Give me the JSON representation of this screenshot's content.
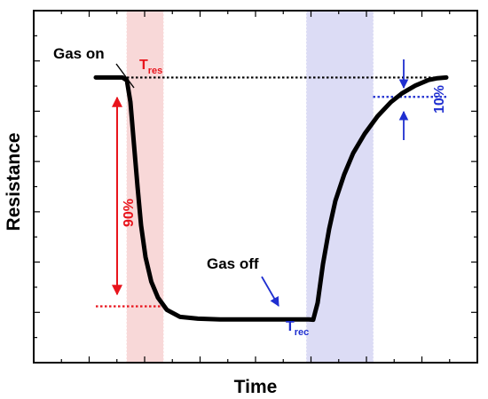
{
  "chart_data": {
    "type": "line",
    "xlabel": "Time",
    "ylabel": "Resistance",
    "xlim": [
      0,
      100
    ],
    "ylim": [
      0,
      100
    ],
    "grid": false,
    "series": [
      {
        "color": "#000000",
        "x": [
          14,
          17,
          20,
          21,
          21.8,
          22.6,
          23.4,
          24.2,
          25.2,
          26.5,
          28,
          30,
          33,
          37,
          42,
          50,
          56,
          60,
          62,
          63,
          64,
          65.2,
          66.6,
          68,
          70,
          72,
          74.6,
          77.5,
          80.5,
          83,
          86,
          89,
          91,
          93
        ],
        "y": [
          81,
          81,
          81,
          80.2,
          74,
          62,
          50,
          39,
          30,
          23,
          18.5,
          15,
          13,
          12.5,
          12.3,
          12.3,
          12.3,
          12.3,
          12.3,
          12.2,
          17,
          28,
          38,
          46,
          53.5,
          59.5,
          65,
          70,
          74,
          76.5,
          78.7,
          80.3,
          80.8,
          81
        ]
      }
    ],
    "regions": [
      {
        "name": "response",
        "x": [
          21,
          29.2
        ],
        "color": "#f8d8d8"
      },
      {
        "name": "recovery",
        "x": [
          61.5,
          76.5
        ],
        "color": "#dcdcf5"
      }
    ],
    "reference_lines": [
      {
        "color": "#000000",
        "style": "dotted",
        "y": 81,
        "x": [
          21,
          93
        ]
      },
      {
        "color": "#e8141c",
        "style": "dotted",
        "y": 16,
        "x": [
          14,
          29.2
        ]
      },
      {
        "color": "#1f2fd0",
        "style": "dotted",
        "y": 75.5,
        "x": [
          76.5,
          93
        ]
      }
    ],
    "annotations": {
      "gas_on": "Gas on",
      "gas_off": "Gas off",
      "t_res_main": "T",
      "t_res_sub": "res",
      "t_rec_main": "T",
      "t_rec_sub": "rec",
      "ninety_pct": "90%",
      "ten_pct": "10%"
    }
  }
}
